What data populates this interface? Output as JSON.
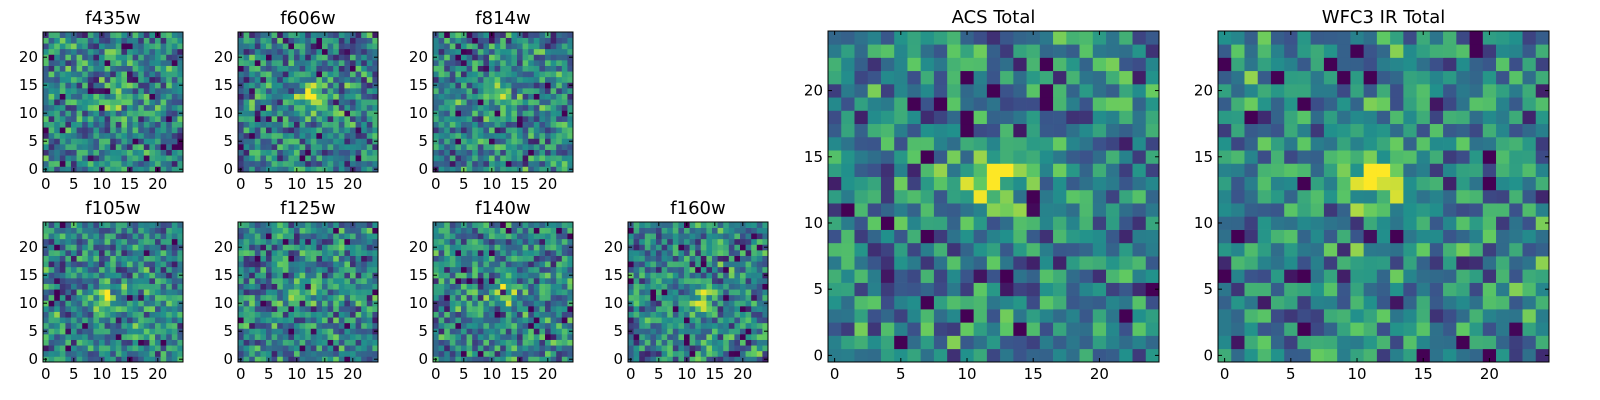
{
  "chart_data": [
    {
      "type": "heatmap",
      "title": "f435w",
      "xticks": [
        "0",
        "5",
        "10",
        "15",
        "20"
      ],
      "yticks": [
        "0",
        "5",
        "10",
        "15",
        "20"
      ],
      "xlim": [
        -0.5,
        24.5
      ],
      "ylim": [
        -0.5,
        24.5
      ],
      "grid": false,
      "blob": {
        "x": 12,
        "y": 12,
        "strength": 0.3
      },
      "seed": 11
    },
    {
      "type": "heatmap",
      "title": "f606w",
      "xticks": [
        "0",
        "5",
        "10",
        "15",
        "20"
      ],
      "yticks": [
        "0",
        "5",
        "10",
        "15",
        "20"
      ],
      "xlim": [
        -0.5,
        24.5
      ],
      "ylim": [
        -0.5,
        24.5
      ],
      "grid": false,
      "blob": {
        "x": 13,
        "y": 13,
        "strength": 0.45
      },
      "seed": 23
    },
    {
      "type": "heatmap",
      "title": "f814w",
      "xticks": [
        "0",
        "5",
        "10",
        "15",
        "20"
      ],
      "yticks": [
        "0",
        "5",
        "10",
        "15",
        "20"
      ],
      "xlim": [
        -0.5,
        24.5
      ],
      "ylim": [
        -0.5,
        24.5
      ],
      "grid": false,
      "blob": {
        "x": 12,
        "y": 13,
        "strength": 0.35
      },
      "seed": 37
    },
    {
      "type": "heatmap",
      "title": "f105w",
      "xticks": [
        "0",
        "5",
        "10",
        "15",
        "20"
      ],
      "yticks": [
        "0",
        "5",
        "10",
        "15",
        "20"
      ],
      "xlim": [
        -0.5,
        24.5
      ],
      "ylim": [
        -0.5,
        24.5
      ],
      "grid": false,
      "blob": {
        "x": 11,
        "y": 11,
        "strength": 0.3
      },
      "seed": 41
    },
    {
      "type": "heatmap",
      "title": "f125w",
      "xticks": [
        "0",
        "5",
        "10",
        "15",
        "20"
      ],
      "yticks": [
        "0",
        "5",
        "10",
        "15",
        "20"
      ],
      "xlim": [
        -0.5,
        24.5
      ],
      "ylim": [
        -0.5,
        24.5
      ],
      "grid": false,
      "blob": {
        "x": 11,
        "y": 12,
        "strength": 0.3
      },
      "seed": 53
    },
    {
      "type": "heatmap",
      "title": "f140w",
      "xticks": [
        "0",
        "5",
        "10",
        "15",
        "20"
      ],
      "yticks": [
        "0",
        "5",
        "10",
        "15",
        "20"
      ],
      "xlim": [
        -0.5,
        24.5
      ],
      "ylim": [
        -0.5,
        24.5
      ],
      "grid": false,
      "blob": {
        "x": 12,
        "y": 12,
        "strength": 0.25
      },
      "seed": 67
    },
    {
      "type": "heatmap",
      "title": "f160w",
      "xticks": [
        "0",
        "5",
        "10",
        "15",
        "20"
      ],
      "yticks": [
        "0",
        "5",
        "10",
        "15",
        "20"
      ],
      "xlim": [
        -0.5,
        24.5
      ],
      "ylim": [
        -0.5,
        24.5
      ],
      "grid": false,
      "blob": {
        "x": 13,
        "y": 11,
        "strength": 0.35
      },
      "seed": 79
    },
    {
      "type": "heatmap",
      "title": "ACS Total",
      "xticks": [
        "0",
        "5",
        "10",
        "15",
        "20"
      ],
      "yticks": [
        "0",
        "5",
        "10",
        "15",
        "20"
      ],
      "xlim": [
        -0.5,
        24.5
      ],
      "ylim": [
        -0.5,
        24.5
      ],
      "grid": false,
      "blob": {
        "x": 12,
        "y": 13,
        "strength": 0.5
      },
      "seed": 97
    },
    {
      "type": "heatmap",
      "title": "WFC3 IR Total",
      "xticks": [
        "0",
        "5",
        "10",
        "15",
        "20"
      ],
      "yticks": [
        "0",
        "5",
        "10",
        "15",
        "20"
      ],
      "xlim": [
        -0.5,
        24.5
      ],
      "ylim": [
        -0.5,
        24.5
      ],
      "grid": false,
      "blob": {
        "x": 12,
        "y": 13,
        "strength": 0.5
      },
      "seed": 113
    }
  ],
  "colormap": [
    "#440154",
    "#3b528b",
    "#21918c",
    "#5ec962",
    "#fde725"
  ]
}
